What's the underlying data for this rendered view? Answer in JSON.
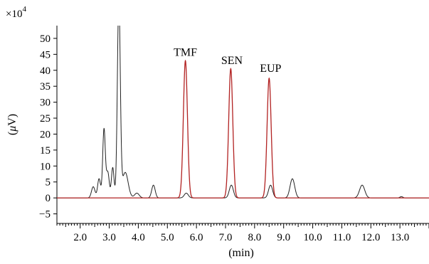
{
  "chart_data": {
    "type": "line",
    "xlabel": "(min)",
    "ylabel_prefix": "(",
    "ylabel_symbol": "μ",
    "ylabel_suffix": "V)",
    "multiplier_base": "×10",
    "multiplier_exp": "4",
    "xlim": [
      1.2,
      14.0
    ],
    "ylim": [
      -8,
      54
    ],
    "x_ticks": [
      2.0,
      3.0,
      4.0,
      5.0,
      6.0,
      7.0,
      8.0,
      9.0,
      10.0,
      11.0,
      12.0,
      13.0
    ],
    "x_tick_labels": [
      "2.0",
      "3.0",
      "4.0",
      "5.0",
      "6.0",
      "7.0",
      "8.0",
      "9.0",
      "10.0",
      "11.0",
      "12.0",
      "13.0"
    ],
    "y_ticks": [
      -5,
      0,
      5,
      10,
      15,
      20,
      25,
      30,
      35,
      40,
      45,
      50
    ],
    "y_tick_labels": [
      "−5",
      "0",
      "5",
      "10",
      "15",
      "20",
      "25",
      "30",
      "35",
      "40",
      "45",
      "50"
    ],
    "grid": false,
    "series": [
      {
        "color": "#222222",
        "peaks": [
          {
            "x": 2.45,
            "h": 3.5,
            "w": 0.06
          },
          {
            "x": 2.65,
            "h": 6,
            "w": 0.05
          },
          {
            "x": 2.82,
            "h": 21.5,
            "w": 0.045
          },
          {
            "x": 2.95,
            "h": 8,
            "w": 0.05
          },
          {
            "x": 3.12,
            "h": 9.5,
            "w": 0.045
          },
          {
            "x": 3.33,
            "h": 62,
            "w": 0.05
          },
          {
            "x": 3.55,
            "h": 8,
            "w": 0.1
          },
          {
            "x": 3.95,
            "h": 1.5,
            "w": 0.08
          },
          {
            "x": 4.52,
            "h": 4,
            "w": 0.06
          },
          {
            "x": 5.65,
            "h": 1.5,
            "w": 0.07
          },
          {
            "x": 7.2,
            "h": 4,
            "w": 0.07
          },
          {
            "x": 8.55,
            "h": 4,
            "w": 0.07
          },
          {
            "x": 9.3,
            "h": 6,
            "w": 0.08
          },
          {
            "x": 11.7,
            "h": 4,
            "w": 0.09
          },
          {
            "x": 13.05,
            "h": 0.4,
            "w": 0.05
          }
        ]
      },
      {
        "color": "#b22222",
        "peaks": [
          {
            "x": 5.62,
            "h": 43,
            "w": 0.07
          },
          {
            "x": 7.18,
            "h": 40.5,
            "w": 0.07
          },
          {
            "x": 8.5,
            "h": 37.5,
            "w": 0.07
          }
        ]
      }
    ],
    "annotations": [
      {
        "text": "TMF",
        "x": 5.62,
        "y": 44.5
      },
      {
        "text": "SEN",
        "x": 7.22,
        "y": 42.0
      },
      {
        "text": "EUP",
        "x": 8.55,
        "y": 39.5
      }
    ]
  }
}
